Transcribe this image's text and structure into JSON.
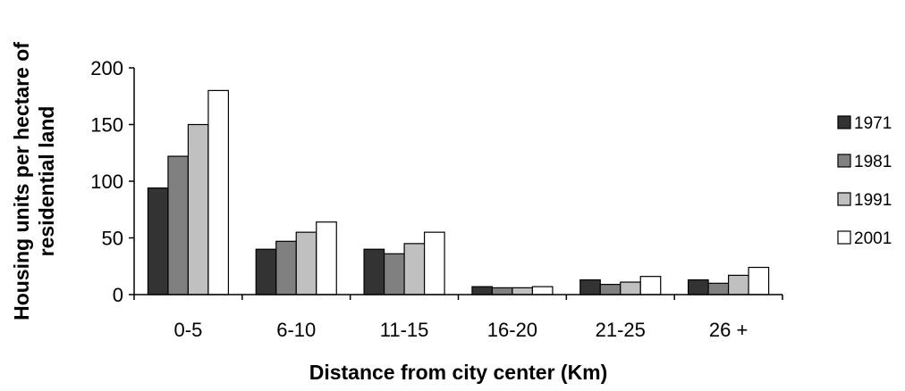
{
  "chart_data": {
    "type": "bar",
    "title": "",
    "xlabel": "Distance from city center (Km)",
    "ylabel_lines": [
      "Housing units per hectare of",
      "residential land"
    ],
    "categories": [
      "0-5",
      "6-10",
      "11-15",
      "16-20",
      "21-25",
      "26 +"
    ],
    "yticks": [
      "0",
      "50",
      "100",
      "150",
      "200"
    ],
    "ylim": [
      0,
      200
    ],
    "grid": false,
    "legend_position": "right",
    "series": [
      {
        "name": "1971",
        "color": "#333333",
        "values": [
          94,
          40,
          40,
          7,
          13,
          13
        ]
      },
      {
        "name": "1981",
        "color": "#808080",
        "values": [
          122,
          47,
          36,
          6,
          9,
          10
        ]
      },
      {
        "name": "1991",
        "color": "#c0c0c0",
        "values": [
          150,
          55,
          45,
          6,
          11,
          17
        ]
      },
      {
        "name": "2001",
        "color": "#ffffff",
        "values": [
          180,
          64,
          55,
          7,
          16,
          24
        ]
      }
    ]
  }
}
